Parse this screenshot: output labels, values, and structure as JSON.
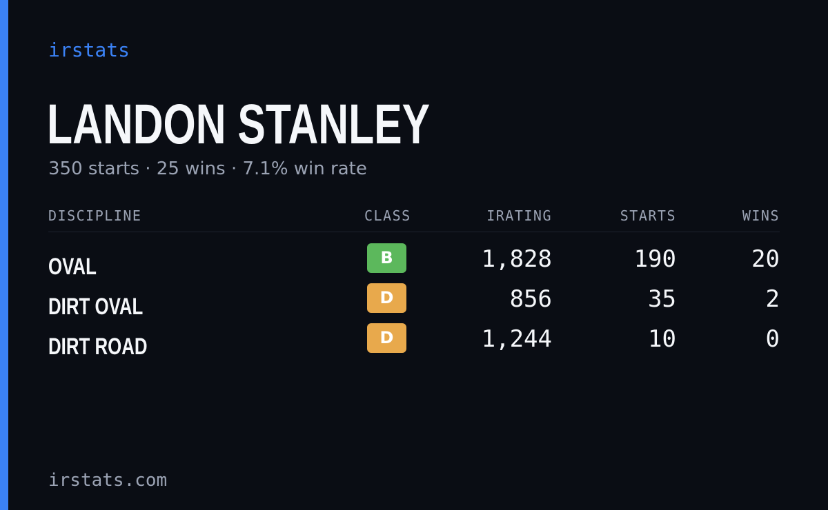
{
  "brand": "irstats",
  "driver": {
    "name": "LANDON STANLEY"
  },
  "summary": {
    "starts": "350 starts",
    "wins": "25 wins",
    "win_rate": "7.1% win rate",
    "separator": "·"
  },
  "table": {
    "headers": {
      "discipline": "DISCIPLINE",
      "class": "CLASS",
      "irating": "IRATING",
      "starts": "STARTS",
      "wins": "WINS"
    },
    "rows": [
      {
        "discipline": "OVAL",
        "class": "B",
        "class_color": "#5cb85c",
        "irating": "1,828",
        "starts": "190",
        "wins": "20"
      },
      {
        "discipline": "DIRT OVAL",
        "class": "D",
        "class_color": "#e8a94c",
        "irating": "856",
        "starts": "35",
        "wins": "2"
      },
      {
        "discipline": "DIRT ROAD",
        "class": "D",
        "class_color": "#e8a94c",
        "irating": "1,244",
        "starts": "10",
        "wins": "0"
      }
    ]
  },
  "footer": {
    "domain": "irstats.com"
  },
  "colors": {
    "accent": "#3b82f6",
    "background": "#0a0d14",
    "text": "#f5f7fa",
    "muted": "#9ba3b4"
  }
}
